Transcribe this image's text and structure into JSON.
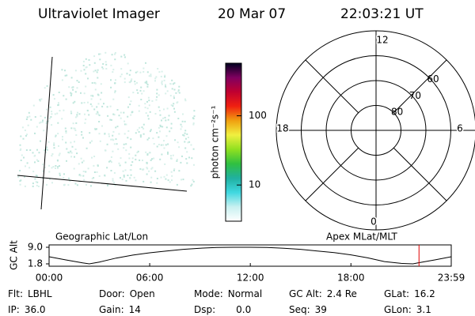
{
  "header": {
    "title": "Ultraviolet Imager",
    "date": "20 Mar 07",
    "time": "22:03:21 UT"
  },
  "colorbar": {
    "label": "photon cm⁻²s⁻¹",
    "scale": "log",
    "clim": [
      3,
      575
    ],
    "ticks": [
      10,
      100
    ],
    "colors": [
      "#ffffff",
      "#c8f0f0",
      "#40d8e0",
      "#20b0a0",
      "#30c040",
      "#90e020",
      "#f0f040",
      "#f0a010",
      "#f02010",
      "#c00030",
      "#800060",
      "#000020"
    ]
  },
  "polar": {
    "mlt_labels": [
      "12",
      "18",
      "6",
      "0"
    ],
    "lat_rings": [
      60,
      70,
      80
    ],
    "rlim": [
      90,
      50
    ]
  },
  "altitude": {
    "ylabel": "GC Alt",
    "left_label": "Geographic Lat/Lon",
    "right_label": "Apex MLat/MLT",
    "xlim": [
      0,
      23.983
    ],
    "ylim": [
      1.8,
      9.0
    ],
    "yticks": [
      {
        "value": 9.0,
        "label": "9.0"
      },
      1.8
    ],
    "xticks": [
      {
        "value": 0,
        "label": "00:00"
      },
      {
        "value": 6,
        "label": "06:00"
      },
      {
        "value": 12,
        "label": "12:00"
      },
      {
        "value": 18,
        "label": "18:00"
      },
      {
        "value": 23.983,
        "label": "23:59"
      }
    ],
    "x": [
      0,
      1,
      2,
      2.4,
      3,
      4,
      5,
      6,
      7,
      8,
      9,
      10,
      11,
      12,
      13,
      14,
      15,
      16,
      17,
      18,
      19,
      20,
      21,
      21.7,
      22,
      23,
      23.983
    ],
    "values": [
      4.9,
      3.5,
      2.2,
      1.8,
      2.6,
      4.3,
      5.6,
      6.6,
      7.4,
      8.1,
      8.6,
      8.9,
      9.0,
      9.0,
      8.9,
      8.6,
      8.1,
      7.4,
      6.7,
      5.7,
      4.4,
      2.8,
      2.0,
      1.8,
      2.2,
      3.5,
      4.9
    ],
    "marker_x": 22.06,
    "marker_color": "#e00000"
  },
  "fields": [
    [
      {
        "label": "Flt:",
        "value": "LBHL"
      },
      {
        "label": "Door:",
        "value": "Open"
      },
      {
        "label": "Mode:",
        "value": "Normal"
      },
      {
        "label": "GC Alt:",
        "value": "2.4 Re"
      },
      {
        "label": "GLat:",
        "value": "16.2"
      }
    ],
    [
      {
        "label": "IP:",
        "value": "36.0"
      },
      {
        "label": "Gain:",
        "value": "14"
      },
      {
        "label": "Dsp:",
        "value": "0.0"
      },
      {
        "label": "Seq:",
        "value": "39"
      },
      {
        "label": "GLon:",
        "value": "3.1"
      }
    ]
  ]
}
